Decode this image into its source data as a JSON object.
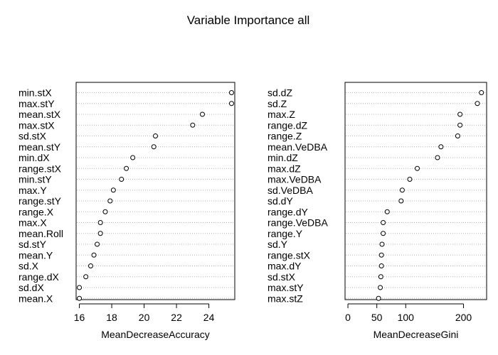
{
  "title": "Variable Importance all",
  "chart_data": [
    {
      "type": "scatter",
      "subtype": "dotchart",
      "xlabel": "MeanDecreaseAccuracy",
      "xlim": [
        15.8,
        25.6
      ],
      "xticks": [
        16,
        18,
        20,
        22,
        24
      ],
      "grid": "dotted horizontal",
      "labels": [
        "min.stX",
        "max.stY",
        "mean.stX",
        "max.stX",
        "sd.stX",
        "mean.stY",
        "min.dX",
        "range.stX",
        "min.stY",
        "max.Y",
        "range.stY",
        "range.X",
        "max.X",
        "mean.Roll",
        "sd.stY",
        "mean.Y",
        "sd.X",
        "range.dX",
        "sd.dX",
        "mean.X"
      ],
      "values": [
        25.4,
        25.4,
        23.6,
        23.0,
        20.7,
        20.6,
        19.3,
        18.9,
        18.6,
        18.1,
        17.9,
        17.6,
        17.3,
        17.3,
        17.1,
        16.9,
        16.7,
        16.4,
        16.0,
        16.0
      ]
    },
    {
      "type": "scatter",
      "subtype": "dotchart",
      "xlabel": "MeanDecreaseGini",
      "xlim": [
        -5,
        240
      ],
      "xticks": [
        0,
        50,
        100,
        200
      ],
      "grid": "dotted horizontal",
      "labels": [
        "sd.dZ",
        "sd.Z",
        "max.Z",
        "range.dZ",
        "range.Z",
        "mean.VeDBA",
        "min.dZ",
        "max.dZ",
        "max.VeDBA",
        "sd.VeDBA",
        "sd.dY",
        "range.dY",
        "range.VeDBA",
        "range.Y",
        "sd.Y",
        "range.stX",
        "max.dY",
        "sd.stX",
        "max.stY",
        "max.stZ"
      ],
      "values": [
        231,
        224,
        194,
        194,
        190,
        161,
        155,
        120,
        107,
        94,
        92,
        68,
        61,
        61,
        59,
        58,
        58,
        57,
        56,
        53
      ]
    }
  ]
}
